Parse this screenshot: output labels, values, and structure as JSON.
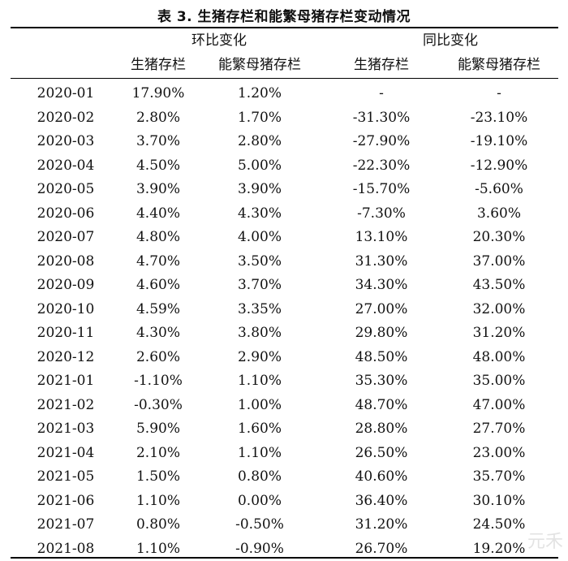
{
  "title": "表 3. 生猪存栏和能繁母猪存栏变动情况",
  "groups": {
    "mom": "环比变化",
    "yoy": "同比变化"
  },
  "subheaders": {
    "mom_hog": "生猪存栏",
    "mom_sow": "能繁母猪存栏",
    "yoy_hog": "生猪存栏",
    "yoy_sow": "能繁母猪存栏"
  },
  "rows": [
    [
      "2020-01",
      "17.90%",
      "1.20%",
      "-",
      "-"
    ],
    [
      "2020-02",
      "2.80%",
      "1.70%",
      "-31.30%",
      "-23.10%"
    ],
    [
      "2020-03",
      "3.70%",
      "2.80%",
      "-27.90%",
      "-19.10%"
    ],
    [
      "2020-04",
      "4.50%",
      "5.00%",
      "-22.30%",
      "-12.90%"
    ],
    [
      "2020-05",
      "3.90%",
      "3.90%",
      "-15.70%",
      "-5.60%"
    ],
    [
      "2020-06",
      "4.40%",
      "4.30%",
      "-7.30%",
      "3.60%"
    ],
    [
      "2020-07",
      "4.80%",
      "4.00%",
      "13.10%",
      "20.30%"
    ],
    [
      "2020-08",
      "4.70%",
      "3.50%",
      "31.30%",
      "37.00%"
    ],
    [
      "2020-09",
      "4.60%",
      "3.70%",
      "34.30%",
      "43.50%"
    ],
    [
      "2020-10",
      "4.59%",
      "3.35%",
      "27.00%",
      "32.00%"
    ],
    [
      "2020-11",
      "4.30%",
      "3.80%",
      "29.80%",
      "31.20%"
    ],
    [
      "2020-12",
      "2.60%",
      "2.90%",
      "48.50%",
      "48.00%"
    ],
    [
      "2021-01",
      "-1.10%",
      "1.10%",
      "35.30%",
      "35.00%"
    ],
    [
      "2021-02",
      "-0.30%",
      "1.00%",
      "48.70%",
      "47.00%"
    ],
    [
      "2021-03",
      "5.90%",
      "1.60%",
      "28.80%",
      "27.70%"
    ],
    [
      "2021-04",
      "2.10%",
      "1.10%",
      "26.50%",
      "23.00%"
    ],
    [
      "2021-05",
      "1.50%",
      "0.80%",
      "40.60%",
      "35.70%"
    ],
    [
      "2021-06",
      "1.10%",
      "0.00%",
      "36.40%",
      "30.10%"
    ],
    [
      "2021-07",
      "0.80%",
      "-0.50%",
      "31.20%",
      "24.50%"
    ],
    [
      "2021-08",
      "1.10%",
      "-0.90%",
      "26.70%",
      "19.20%"
    ]
  ],
  "watermark": "元禾"
}
